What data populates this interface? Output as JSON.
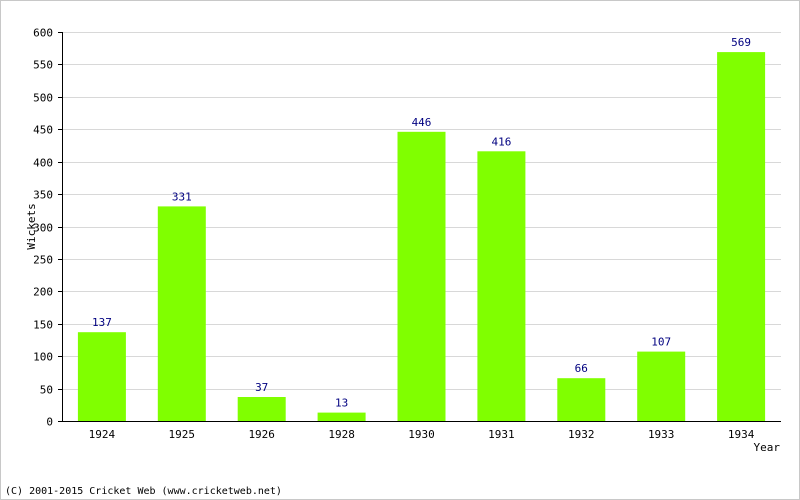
{
  "chart_data": {
    "type": "bar",
    "categories": [
      "1924",
      "1925",
      "1926",
      "1928",
      "1930",
      "1931",
      "1932",
      "1933",
      "1934"
    ],
    "values": [
      137,
      331,
      37,
      13,
      446,
      416,
      66,
      107,
      569
    ],
    "xlabel": "Year",
    "ylabel": "Wickets",
    "ylim": [
      0,
      600
    ],
    "ytick_step": 50,
    "grid": true,
    "bar_color": "#80ff00",
    "data_label_color": "#000080",
    "grid_color": "#d8d8d8"
  },
  "footer": {
    "copyright": "(C) 2001-2015 Cricket Web (www.cricketweb.net)"
  }
}
